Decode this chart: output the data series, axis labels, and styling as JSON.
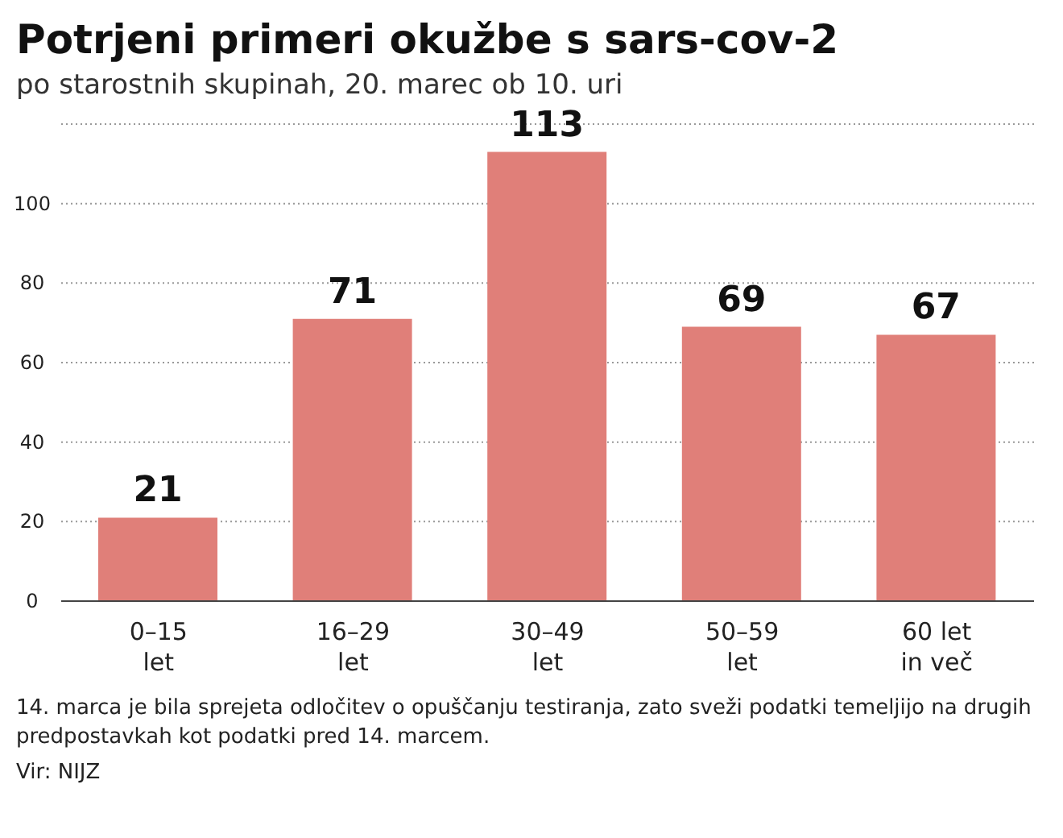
{
  "chart_data": {
    "type": "bar",
    "title": "Potrjeni primeri okužbe s sars-cov-2",
    "subtitle": "po starostnih skupinah, 20. marec ob 10. uri",
    "categories": [
      "0–15\nlet",
      "16–29\nlet",
      "30–49\nlet",
      "50–59\nlet",
      "60 let\nin več"
    ],
    "values": [
      21,
      71,
      113,
      69,
      67
    ],
    "color": "#e07f79",
    "data_labels": true,
    "ylim": [
      0,
      120
    ],
    "yticks": [
      0,
      20,
      40,
      60,
      80,
      100,
      {
        "value": 120,
        "label": null
      }
    ],
    "grid": "y",
    "annotations": [
      "14. marca je bila sprejeta odločitev o opuščanju testiranja, zato sveži podatki temeljijo na drugih predpostavkah kot podatki pred 14. marcem.",
      "Vir: NIJZ"
    ]
  }
}
